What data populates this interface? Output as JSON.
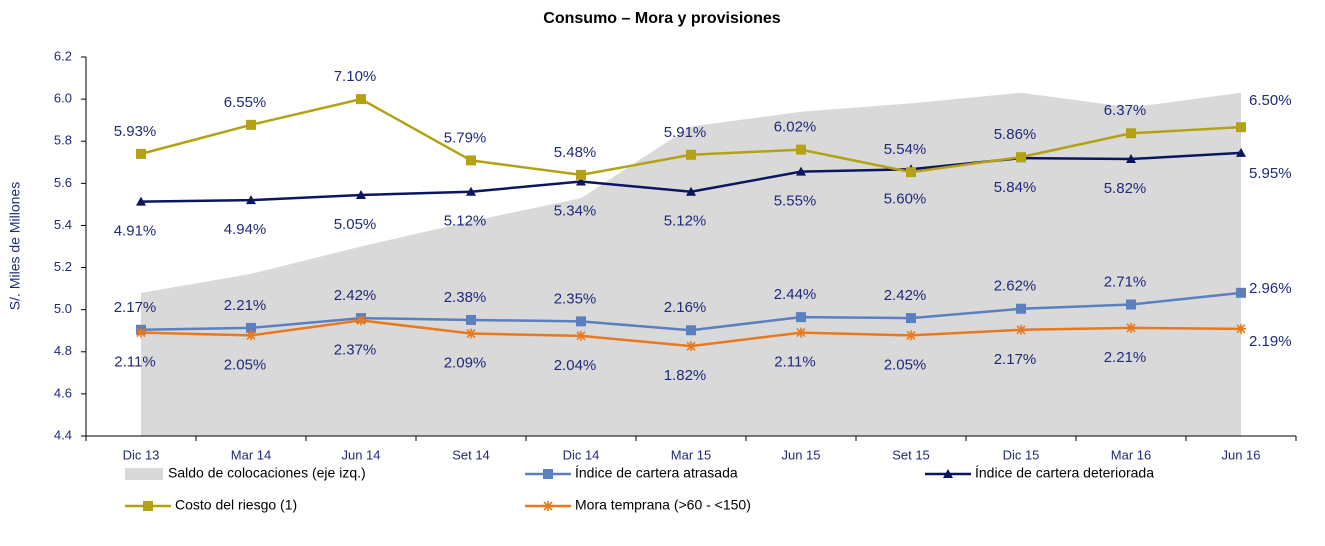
{
  "chart_data": {
    "type": "line",
    "title": "Consumo – Mora y provisiones",
    "y_label": "S/. Miles de Millones",
    "categories": [
      "Dic 13",
      "Mar 14",
      "Jun 14",
      "Set 14",
      "Dic 14",
      "Mar 15",
      "Jun 15",
      "Set 15",
      "Dic 15",
      "Mar 16",
      "Jun 16"
    ],
    "ylim": [
      4.4,
      6.2
    ],
    "yticks": [
      {
        "value": 4.4,
        "label": "4.4"
      },
      {
        "value": 4.6,
        "label": "4.6"
      },
      {
        "value": 4.8,
        "label": "4.8"
      },
      {
        "value": 5.0,
        "label": "5.0"
      },
      {
        "value": 5.2,
        "label": "5.2"
      },
      {
        "value": 5.4,
        "label": "5.4"
      },
      {
        "value": 5.6,
        "label": "5.6"
      },
      {
        "value": 5.8,
        "label": "5.8"
      },
      {
        "value": 6.0,
        "label": "6.0"
      },
      {
        "value": 6.2,
        "label": "6.2"
      }
    ],
    "y2lim": [
      -0.1,
      8.0
    ],
    "legend": "bottom",
    "series": [
      {
        "name": "Saldo de colocaciones (eje izq.)",
        "type": "area",
        "color": "#d9d9d9",
        "values": [
          5.08,
          5.17,
          5.3,
          5.42,
          5.53,
          5.87,
          5.94,
          5.98,
          6.03,
          5.96,
          6.03
        ]
      },
      {
        "name": "Índice de cartera atrasada",
        "axis": "y2",
        "color": "#5b7fbf",
        "marker": "square",
        "values": [
          2.17,
          2.21,
          2.42,
          2.38,
          2.35,
          2.16,
          2.44,
          2.42,
          2.62,
          2.71,
          2.96
        ],
        "value_labels": [
          "2.17%",
          "2.21%",
          "2.42%",
          "2.38%",
          "2.35%",
          "2.16%",
          "2.44%",
          "2.42%",
          "2.62%",
          "2.71%",
          "2.96%"
        ]
      },
      {
        "name": "Índice de cartera deteriorada",
        "axis": "y2",
        "color": "#0b1560",
        "marker": "triangle",
        "values": [
          4.91,
          4.94,
          5.05,
          5.12,
          5.34,
          5.12,
          5.55,
          5.6,
          5.84,
          5.82,
          5.95
        ],
        "value_labels": [
          "4.91%",
          "4.94%",
          "5.05%",
          "5.12%",
          "5.34%",
          "5.12%",
          "5.55%",
          "5.60%",
          "5.84%",
          "5.82%",
          "5.95%"
        ]
      },
      {
        "name": "Costo del riesgo (1)",
        "axis": "y2",
        "color": "#b5a114",
        "marker": "square",
        "values": [
          5.93,
          6.55,
          7.1,
          5.79,
          5.48,
          5.91,
          6.02,
          5.54,
          5.86,
          6.37,
          6.5
        ],
        "value_labels": [
          "5.93%",
          "6.55%",
          "7.10%",
          "5.79%",
          "5.48%",
          "5.91%",
          "6.02%",
          "5.54%",
          "5.86%",
          "6.37%",
          "6.50%"
        ]
      },
      {
        "name": "Mora temprana (>60 - <150)",
        "axis": "y2",
        "color": "#e8791c",
        "marker": "asterisk",
        "values": [
          2.11,
          2.05,
          2.37,
          2.09,
          2.04,
          1.82,
          2.11,
          2.05,
          2.17,
          2.21,
          2.19
        ],
        "value_labels": [
          "2.11%",
          "2.05%",
          "2.37%",
          "2.09%",
          "2.04%",
          "1.82%",
          "2.11%",
          "2.05%",
          "2.17%",
          "2.21%",
          "2.19%"
        ]
      }
    ]
  }
}
